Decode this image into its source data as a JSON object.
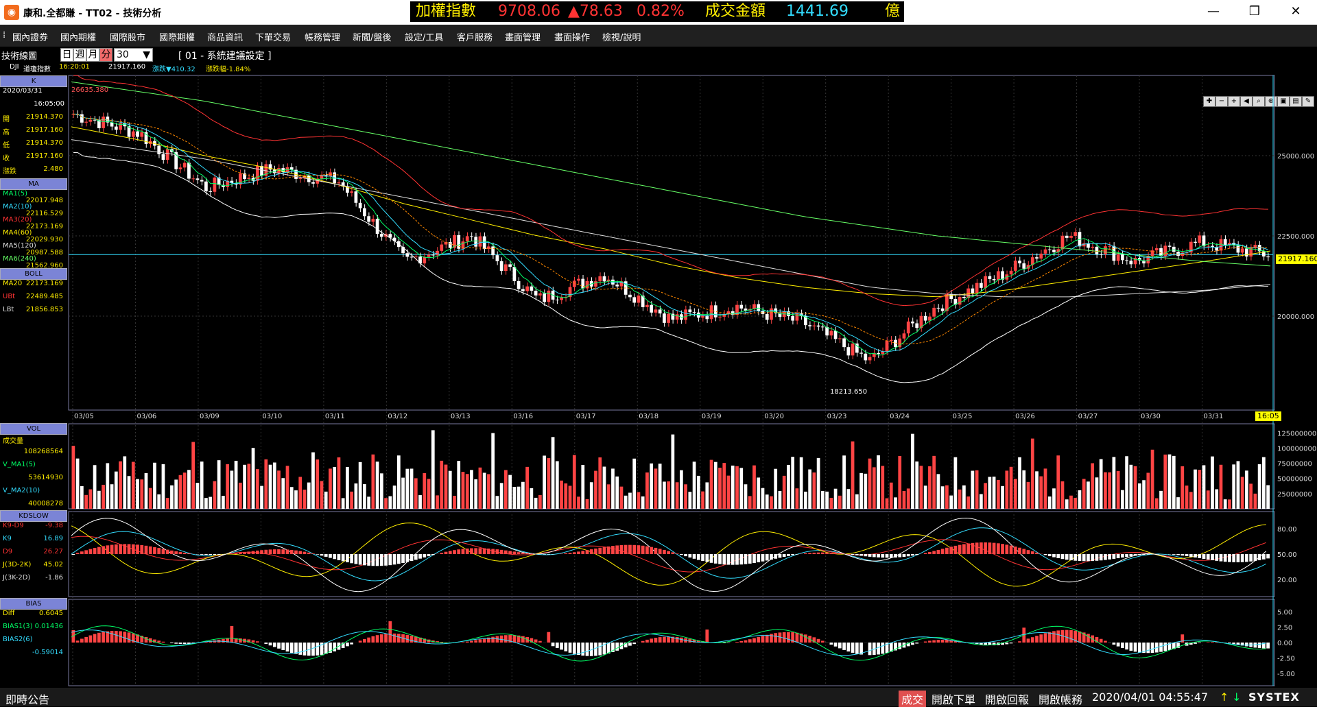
{
  "window": {
    "title": "康和.全都賺 - TT02 - 技術分析",
    "logo_glyph": "◉"
  },
  "ticker": {
    "label": "加權指數",
    "value": "9708.06",
    "change": "▲78.63",
    "pct": "0.82%",
    "vol_label": "成交金額",
    "vol_value": "1441.69",
    "vol_unit": "億"
  },
  "menu": [
    "國內證券",
    "國內期權",
    "國際股市",
    "國際期權",
    "商品資訊",
    "下單交易",
    "帳務管理",
    "新聞/盤後",
    "設定/工具",
    "客戶服務",
    "畫面管理",
    "畫面操作",
    "檢視/說明"
  ],
  "toolbar": {
    "title": "技術線圖",
    "periods": [
      "日",
      "週",
      "月",
      "分"
    ],
    "active_period": "分",
    "interval": "30",
    "preset": "[ 01 - 系統建議設定 ]"
  },
  "info": {
    "symbol": "DJI",
    "name": "道瓊指數",
    "time": "16:20:01",
    "price": "21917.160",
    "change": "漲跌▼410.32",
    "pct": "漲跌幅-1.84%"
  },
  "left_panel": {
    "k_header": "K",
    "date": "2020/03/31",
    "time": "16:05:00",
    "ohlc": [
      {
        "label": "開",
        "value": "21914.370"
      },
      {
        "label": "高",
        "value": "21917.160"
      },
      {
        "label": "低",
        "value": "21914.370"
      },
      {
        "label": "收",
        "value": "21917.160"
      },
      {
        "label": "漲跌",
        "value": "2.480"
      }
    ],
    "ma_header": "MA",
    "ma": [
      {
        "label": "MA1(5)",
        "value": "22017.948",
        "color": "#00ff66"
      },
      {
        "label": "MA2(10)",
        "value": "22116.529",
        "color": "#33ddff"
      },
      {
        "label": "MA3(20)",
        "value": "22173.169",
        "color": "#ff3333"
      },
      {
        "label": "MA4(60)",
        "value": "22029.930",
        "color": "#ffee00"
      },
      {
        "label": "MA5(120)",
        "value": "20987.588",
        "color": "#dddddd"
      },
      {
        "label": "MA6(240)",
        "value": "21562.960",
        "color": "#66ff66"
      }
    ],
    "boll_header": "BOLL",
    "boll": [
      {
        "label": "MA20",
        "value": "22173.169",
        "color": "#ffee00"
      },
      {
        "label": "UBt",
        "value": "22489.485",
        "color": "#ff3333"
      },
      {
        "label": "LBt",
        "value": "21856.853",
        "color": "#dddddd"
      }
    ],
    "vol_header": "VOL",
    "vol": [
      {
        "label": "成交量",
        "value": "",
        "color": "#ffee00"
      },
      {
        "label": "",
        "value": "108268564",
        "color": "#ffee00"
      },
      {
        "label": "V_MA1(5)",
        "value": "",
        "color": "#00ff66"
      },
      {
        "label": "",
        "value": "53614930",
        "color": "#ffee00"
      },
      {
        "label": "V_MA2(10)",
        "value": "",
        "color": "#33ddff"
      },
      {
        "label": "",
        "value": "40008278",
        "color": "#ffee00"
      }
    ],
    "kd_header": "KDSLOW",
    "kd": [
      {
        "label": "K9-D9",
        "value": "-9.38",
        "color": "#ff3333"
      },
      {
        "label": "K9",
        "value": "16.89",
        "color": "#33ddff"
      },
      {
        "label": "D9",
        "value": "26.27",
        "color": "#ff3333"
      },
      {
        "label": "J(3D-2K)",
        "value": "45.02",
        "color": "#ffee00"
      },
      {
        "label": "J(3K-2D)",
        "value": "-1.86",
        "color": "#dddddd"
      }
    ],
    "bias_header": "BIAS",
    "bias": [
      {
        "label": "Diff",
        "value": "0.6045",
        "color": "#ffee00"
      },
      {
        "label": "BIAS1(3)",
        "value": "0.01436",
        "color": "#00ff66"
      },
      {
        "label": "BIAS2(6)",
        "value": "",
        "color": "#33ddff"
      },
      {
        "label": "",
        "value": "-0.59014",
        "color": "#33ddff"
      }
    ]
  },
  "price_axis": [
    "25000.000",
    "22500.000",
    "20000.000"
  ],
  "price_start": "26635.380",
  "price_low_label": "18213.650",
  "current_price": "21917.160",
  "current_time": "16:05",
  "dates": [
    "03/05",
    "03/06",
    "03/09",
    "03/10",
    "03/11",
    "03/12",
    "03/13",
    "03/16",
    "03/17",
    "03/18",
    "03/19",
    "03/20",
    "03/23",
    "03/24",
    "03/25",
    "03/26",
    "03/27",
    "03/30",
    "03/31"
  ],
  "vol_axis": [
    "125000000",
    "100000000",
    "75000000",
    "50000000",
    "25000000"
  ],
  "kd_axis": [
    "80.00",
    "50.00",
    "20.00"
  ],
  "bias_axis": [
    "5.00",
    "2.50",
    "0.00",
    "-2.50",
    "-5.00"
  ],
  "status": {
    "bulletin": "即時公告",
    "trade": "成交",
    "open_order": "開啟下單",
    "open_reply": "開啟回報",
    "open_account": "開啟帳務",
    "datetime": "2020/04/01 04:55:47",
    "brand": "SYSTEX"
  },
  "chart_data": [
    {
      "type": "line",
      "title": "DJI 道瓊指數",
      "x": [
        "03/05",
        "03/06",
        "03/09",
        "03/10",
        "03/11",
        "03/12",
        "03/13",
        "03/16",
        "03/17",
        "03/18",
        "03/19",
        "03/20",
        "03/23",
        "03/24",
        "03/25",
        "03/26",
        "03/27",
        "03/30",
        "03/31"
      ],
      "series": [
        {
          "name": "K",
          "values": [
            26300,
            25700,
            24000,
            24600,
            24200,
            21700,
            22500,
            20500,
            21300,
            19900,
            20300,
            19800,
            18600,
            20300,
            21300,
            22500,
            21700,
            22300,
            21917
          ]
        },
        {
          "name": "MA4(60)",
          "values": [
            25900,
            25500,
            25000,
            24600,
            24100,
            23500,
            23000,
            22500,
            22100,
            21600,
            21200,
            20900,
            20700,
            20600,
            20800,
            21100,
            21400,
            21700,
            22029
          ]
        },
        {
          "name": "MA5(120)",
          "values": [
            25500,
            25200,
            24900,
            24500,
            24100,
            23700,
            23300,
            22900,
            22500,
            22100,
            21700,
            21300,
            20900,
            20700,
            20600,
            20600,
            20700,
            20800,
            20987
          ]
        },
        {
          "name": "MA6(240)",
          "values": [
            27300,
            27000,
            26700,
            26300,
            25900,
            25500,
            25100,
            24700,
            24300,
            23900,
            23500,
            23100,
            22800,
            22500,
            22300,
            22100,
            21900,
            21700,
            21562
          ]
        }
      ],
      "ylim": [
        17500,
        27500
      ]
    }
  ]
}
